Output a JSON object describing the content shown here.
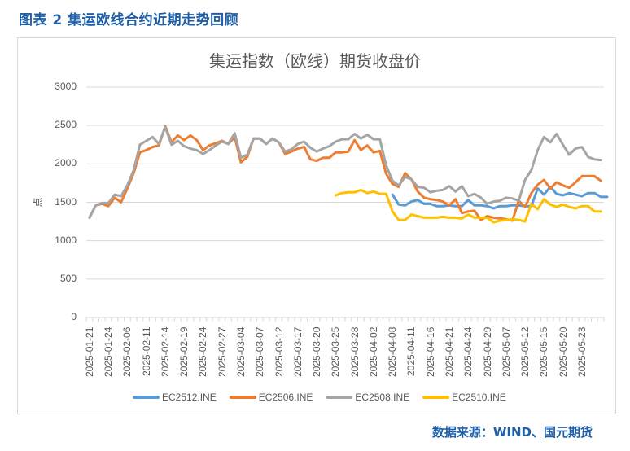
{
  "figure": {
    "title": "图表 2 集运欧线合约近期走势回顾",
    "source": "数据来源：WIND、国元期货"
  },
  "chart_data": {
    "type": "line",
    "title": "集运指数（欧线）期货收盘价",
    "xlabel": "",
    "ylabel": "点",
    "ylim": [
      0,
      3000
    ],
    "yticks": [
      0,
      500,
      1000,
      1500,
      2000,
      2500,
      3000
    ],
    "grid": true,
    "legend_position": "bottom",
    "x_tick_labels": [
      "2025-01-21",
      "2025-01-24",
      "2025-02-06",
      "2025-02-11",
      "2025-02-14",
      "2025-02-19",
      "2025-02-24",
      "2025-02-27",
      "2025-03-04",
      "2025-03-07",
      "2025-03-12",
      "2025-03-17",
      "2025-03-20",
      "2025-03-25",
      "2025-03-28",
      "2025-04-02",
      "2025-04-08",
      "2025-04-11",
      "2025-04-16",
      "2025-04-21",
      "2025-04-24",
      "2025-04-29",
      "2025-05-07",
      "2025-05-12",
      "2025-05-15",
      "2025-05-20",
      "2025-05-23"
    ],
    "n_points": 82,
    "series": [
      {
        "name": "EC2512.INE",
        "color": "#5b9bd5",
        "start_index": 48,
        "values": [
          1600,
          1470,
          1460,
          1510,
          1530,
          1480,
          1480,
          1450,
          1450,
          1460,
          1450,
          1450,
          1530,
          1460,
          1460,
          1450,
          1420,
          1450,
          1450,
          1460,
          1460,
          1450,
          1450,
          1680,
          1600,
          1700,
          1610,
          1590,
          1620,
          1600,
          1580,
          1620,
          1620,
          1570,
          1570
        ]
      },
      {
        "name": "EC2506.INE",
        "color": "#ed7d31",
        "start_index": 0,
        "values": [
          1300,
          1460,
          1480,
          1450,
          1560,
          1500,
          1680,
          1880,
          2150,
          2180,
          2220,
          2240,
          2490,
          2280,
          2370,
          2310,
          2370,
          2310,
          2180,
          2240,
          2270,
          2300,
          2260,
          2350,
          2020,
          2090,
          2330,
          2330,
          2260,
          2330,
          2280,
          2130,
          2160,
          2200,
          2220,
          2060,
          2040,
          2080,
          2080,
          2150,
          2150,
          2160,
          2310,
          2180,
          2240,
          2150,
          2170,
          1870,
          1740,
          1700,
          1880,
          1800,
          1640,
          1560,
          1540,
          1530,
          1510,
          1460,
          1540,
          1360,
          1380,
          1390,
          1270,
          1320,
          1300,
          1290,
          1280,
          1260,
          1520,
          1440,
          1620,
          1730,
          1790,
          1680,
          1760,
          1720,
          1690,
          1760,
          1840,
          1840,
          1840,
          1780
        ]
      },
      {
        "name": "EC2508.INE",
        "color": "#a5a5a5",
        "start_index": 0,
        "values": [
          1300,
          1460,
          1490,
          1490,
          1600,
          1580,
          1720,
          1920,
          2250,
          2300,
          2350,
          2260,
          2480,
          2250,
          2300,
          2230,
          2200,
          2180,
          2130,
          2180,
          2240,
          2290,
          2260,
          2400,
          2080,
          2120,
          2330,
          2330,
          2260,
          2330,
          2280,
          2160,
          2190,
          2260,
          2290,
          2210,
          2160,
          2200,
          2230,
          2290,
          2320,
          2320,
          2390,
          2330,
          2380,
          2320,
          2320,
          1980,
          1780,
          1720,
          1830,
          1800,
          1700,
          1690,
          1630,
          1650,
          1660,
          1710,
          1640,
          1710,
          1580,
          1610,
          1560,
          1480,
          1510,
          1520,
          1560,
          1550,
          1520,
          1790,
          1920,
          2180,
          2350,
          2280,
          2390,
          2250,
          2120,
          2200,
          2220,
          2090,
          2060,
          2050
        ]
      },
      {
        "name": "EC2510.INE",
        "color": "#ffc000",
        "start_index": 39,
        "values": [
          1590,
          1620,
          1630,
          1630,
          1660,
          1620,
          1640,
          1610,
          1610,
          1380,
          1270,
          1270,
          1340,
          1320,
          1300,
          1300,
          1300,
          1310,
          1300,
          1300,
          1290,
          1340,
          1300,
          1300,
          1300,
          1240,
          1260,
          1270,
          1280,
          1270,
          1250,
          1480,
          1410,
          1540,
          1470,
          1440,
          1470,
          1440,
          1420,
          1450,
          1450,
          1380,
          1380
        ]
      }
    ]
  },
  "legend": {
    "items": [
      {
        "label": "EC2512.INE",
        "color": "#5b9bd5"
      },
      {
        "label": "EC2506.INE",
        "color": "#ed7d31"
      },
      {
        "label": "EC2508.INE",
        "color": "#a5a5a5"
      },
      {
        "label": "EC2510.INE",
        "color": "#ffc000"
      }
    ]
  }
}
